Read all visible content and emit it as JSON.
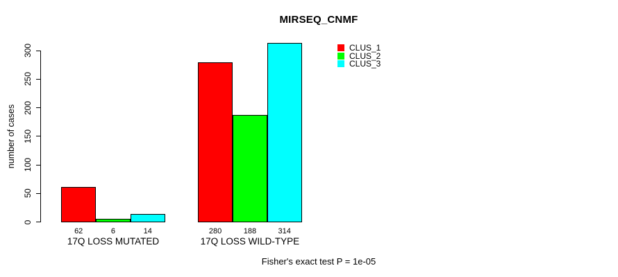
{
  "chart_data": {
    "type": "bar",
    "title": "MIRSEQ_CNMF",
    "ylabel": "number of cases",
    "xlabel": "",
    "categories": [
      "17Q LOSS MUTATED",
      "17Q LOSS WILD-TYPE"
    ],
    "series": [
      {
        "name": "CLUS_1",
        "color": "#ff0000",
        "values": [
          62,
          280
        ]
      },
      {
        "name": "CLUS_2",
        "color": "#00ff00",
        "values": [
          6,
          188
        ]
      },
      {
        "name": "CLUS_3",
        "color": "#00ffff",
        "values": [
          14,
          314
        ]
      }
    ],
    "yticks": [
      0,
      50,
      100,
      150,
      200,
      250,
      300
    ],
    "ylim": [
      0,
      300
    ],
    "bar_value_labels_shown": true,
    "bar_border_color": "#000000",
    "grid": false,
    "legend": {
      "position": "top-right"
    },
    "annotation": "Fisher's exact test P = 1e-05"
  }
}
